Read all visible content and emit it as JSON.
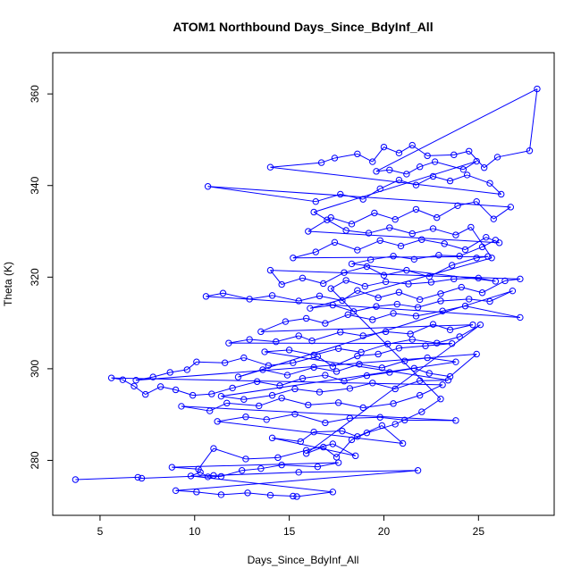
{
  "chart_data": {
    "type": "scatter",
    "title": "ATOM1 Northbound Days_Since_BdyInf_All",
    "xlabel": "Days_Since_BdyInf_All",
    "ylabel": "Theta (K)",
    "xlim": [
      2.5,
      29.0
    ],
    "ylim": [
      268.0,
      369.0
    ],
    "x_ticks": [
      5,
      10,
      15,
      20,
      25
    ],
    "y_ticks": [
      280,
      300,
      320,
      340,
      360
    ],
    "series_color": "#0000ff",
    "grid": false,
    "markers": "open-circle",
    "connected_by_lines": true,
    "points": [
      [
        3.7,
        275.8
      ],
      [
        7.0,
        276.3
      ],
      [
        7.2,
        276.1
      ],
      [
        11.0,
        276.7
      ],
      [
        15.5,
        277.4
      ],
      [
        21.8,
        277.8
      ],
      [
        9.0,
        273.4
      ],
      [
        10.1,
        273.1
      ],
      [
        11.4,
        272.5
      ],
      [
        12.8,
        272.9
      ],
      [
        14.0,
        272.4
      ],
      [
        15.2,
        272.2
      ],
      [
        15.4,
        272.1
      ],
      [
        17.3,
        273.1
      ],
      [
        9.8,
        276.6
      ],
      [
        10.3,
        277.4
      ],
      [
        10.7,
        276.4
      ],
      [
        11.4,
        276.5
      ],
      [
        12.5,
        277.8
      ],
      [
        13.5,
        278.2
      ],
      [
        14.6,
        279.0
      ],
      [
        16.5,
        278.6
      ],
      [
        17.6,
        279.5
      ],
      [
        8.8,
        278.5
      ],
      [
        10.2,
        278.1
      ],
      [
        11.0,
        282.6
      ],
      [
        12.7,
        280.3
      ],
      [
        14.4,
        280.6
      ],
      [
        15.9,
        282.2
      ],
      [
        17.3,
        283.6
      ],
      [
        18.5,
        281.0
      ],
      [
        14.1,
        284.9
      ],
      [
        15.6,
        284.1
      ],
      [
        16.3,
        286.2
      ],
      [
        17.8,
        286.4
      ],
      [
        18.6,
        285.2
      ],
      [
        19.9,
        287.6
      ],
      [
        21.0,
        283.7
      ],
      [
        11.2,
        288.5
      ],
      [
        12.7,
        289.5
      ],
      [
        13.8,
        288.9
      ],
      [
        15.3,
        290.1
      ],
      [
        16.9,
        288.2
      ],
      [
        18.2,
        289.2
      ],
      [
        19.8,
        289.4
      ],
      [
        21.1,
        288.8
      ],
      [
        23.8,
        288.7
      ],
      [
        9.3,
        291.8
      ],
      [
        10.8,
        290.8
      ],
      [
        11.7,
        292.5
      ],
      [
        13.4,
        291.9
      ],
      [
        14.6,
        293.6
      ],
      [
        16.0,
        292.1
      ],
      [
        17.6,
        292.6
      ],
      [
        18.9,
        291.5
      ],
      [
        20.5,
        292.4
      ],
      [
        21.9,
        294.2
      ],
      [
        23.1,
        296.5
      ],
      [
        5.6,
        298.0
      ],
      [
        6.2,
        297.6
      ],
      [
        6.8,
        296.2
      ],
      [
        7.4,
        294.4
      ],
      [
        8.2,
        296.1
      ],
      [
        9.0,
        295.4
      ],
      [
        9.9,
        294.2
      ],
      [
        10.9,
        294.5
      ],
      [
        12.0,
        295.8
      ],
      [
        13.3,
        297.2
      ],
      [
        14.5,
        296.3
      ],
      [
        15.7,
        297.9
      ],
      [
        16.9,
        298.6
      ],
      [
        17.9,
        297.3
      ],
      [
        19.1,
        298.5
      ],
      [
        20.3,
        299.2
      ],
      [
        21.6,
        300.1
      ],
      [
        22.4,
        299.0
      ],
      [
        23.5,
        298.3
      ],
      [
        24.9,
        303.2
      ],
      [
        6.9,
        297.5
      ],
      [
        7.8,
        298.2
      ],
      [
        8.7,
        299.2
      ],
      [
        9.6,
        299.8
      ],
      [
        10.1,
        301.5
      ],
      [
        11.6,
        301.3
      ],
      [
        12.6,
        302.4
      ],
      [
        13.9,
        300.7
      ],
      [
        15.2,
        301.3
      ],
      [
        16.5,
        302.7
      ],
      [
        17.3,
        300.5
      ],
      [
        18.6,
        302.8
      ],
      [
        19.7,
        303.2
      ],
      [
        20.8,
        304.5
      ],
      [
        22.2,
        305.0
      ],
      [
        23.6,
        305.5
      ],
      [
        11.8,
        305.6
      ],
      [
        12.9,
        306.4
      ],
      [
        14.3,
        305.9
      ],
      [
        15.5,
        307.2
      ],
      [
        16.2,
        306.1
      ],
      [
        17.7,
        308.0
      ],
      [
        18.9,
        307.2
      ],
      [
        20.1,
        308.1
      ],
      [
        21.4,
        307.6
      ],
      [
        22.6,
        309.7
      ],
      [
        23.5,
        308.5
      ],
      [
        24.7,
        309.6
      ],
      [
        13.5,
        308.1
      ],
      [
        14.8,
        310.3
      ],
      [
        15.9,
        311.0
      ],
      [
        16.9,
        309.9
      ],
      [
        18.1,
        311.8
      ],
      [
        19.4,
        310.7
      ],
      [
        20.5,
        312.1
      ],
      [
        21.7,
        311.5
      ],
      [
        23.1,
        312.6
      ],
      [
        24.3,
        313.7
      ],
      [
        27.2,
        311.2
      ],
      [
        10.6,
        315.8
      ],
      [
        11.5,
        316.5
      ],
      [
        12.9,
        315.2
      ],
      [
        14.1,
        316.0
      ],
      [
        15.5,
        314.8
      ],
      [
        16.6,
        315.9
      ],
      [
        17.8,
        314.9
      ],
      [
        18.6,
        317.1
      ],
      [
        19.7,
        315.5
      ],
      [
        20.8,
        316.7
      ],
      [
        21.9,
        315.1
      ],
      [
        23.0,
        316.4
      ],
      [
        24.1,
        317.8
      ],
      [
        25.2,
        316.6
      ],
      [
        26.4,
        319.2
      ],
      [
        27.2,
        319.6
      ],
      [
        14.0,
        321.5
      ],
      [
        14.6,
        318.4
      ],
      [
        15.7,
        319.8
      ],
      [
        16.8,
        318.6
      ],
      [
        17.9,
        321.0
      ],
      [
        19.1,
        322.3
      ],
      [
        20.0,
        320.4
      ],
      [
        21.2,
        321.5
      ],
      [
        22.4,
        320.1
      ],
      [
        23.6,
        322.6
      ],
      [
        24.9,
        324.2
      ],
      [
        25.5,
        324.5
      ],
      [
        15.2,
        324.2
      ],
      [
        16.4,
        325.5
      ],
      [
        17.4,
        327.6
      ],
      [
        18.6,
        325.9
      ],
      [
        19.8,
        328.0
      ],
      [
        20.9,
        326.8
      ],
      [
        22.0,
        328.2
      ],
      [
        23.2,
        327.3
      ],
      [
        24.3,
        326.0
      ],
      [
        25.4,
        328.7
      ],
      [
        26.1,
        327.5
      ],
      [
        16.0,
        330.0
      ],
      [
        17.2,
        333.0
      ],
      [
        18.3,
        331.6
      ],
      [
        19.5,
        334.0
      ],
      [
        20.6,
        332.6
      ],
      [
        21.7,
        334.8
      ],
      [
        22.8,
        333.0
      ],
      [
        23.9,
        335.6
      ],
      [
        24.9,
        336.5
      ],
      [
        25.8,
        332.7
      ],
      [
        26.7,
        335.3
      ],
      [
        10.7,
        339.8
      ],
      [
        16.4,
        336.5
      ],
      [
        17.7,
        338.1
      ],
      [
        18.9,
        337.0
      ],
      [
        19.8,
        339.3
      ],
      [
        20.8,
        341.2
      ],
      [
        21.7,
        340.1
      ],
      [
        22.6,
        342.0
      ],
      [
        23.5,
        341.0
      ],
      [
        24.4,
        342.3
      ],
      [
        25.6,
        340.5
      ],
      [
        26.2,
        338.1
      ],
      [
        14.0,
        344.0
      ],
      [
        16.7,
        345.0
      ],
      [
        17.4,
        346.0
      ],
      [
        18.6,
        346.9
      ],
      [
        19.4,
        345.2
      ],
      [
        20.0,
        348.4
      ],
      [
        20.8,
        347.1
      ],
      [
        21.5,
        348.8
      ],
      [
        22.3,
        346.5
      ],
      [
        23.7,
        346.7
      ],
      [
        24.5,
        347.5
      ],
      [
        25.3,
        343.9
      ],
      [
        26.0,
        346.2
      ],
      [
        27.7,
        347.6
      ],
      [
        28.1,
        361.1
      ],
      [
        19.6,
        343.1
      ],
      [
        20.3,
        343.4
      ],
      [
        21.2,
        342.5
      ],
      [
        21.9,
        344.1
      ],
      [
        22.7,
        345.2
      ],
      [
        24.2,
        343.5
      ],
      [
        24.9,
        345.3
      ],
      [
        16.3,
        334.2
      ],
      [
        17.0,
        332.5
      ],
      [
        18.0,
        330.2
      ],
      [
        19.2,
        329.6
      ],
      [
        20.3,
        330.8
      ],
      [
        21.5,
        329.5
      ],
      [
        22.6,
        330.6
      ],
      [
        23.8,
        329.2
      ],
      [
        24.6,
        330.9
      ],
      [
        25.7,
        324.2
      ],
      [
        16.1,
        313.2
      ],
      [
        17.3,
        313.9
      ],
      [
        18.4,
        312.5
      ],
      [
        19.6,
        313.6
      ],
      [
        20.7,
        314.1
      ],
      [
        21.8,
        313.4
      ],
      [
        23.0,
        314.8
      ],
      [
        24.5,
        315.2
      ],
      [
        25.6,
        314.7
      ],
      [
        26.8,
        317.0
      ],
      [
        12.3,
        298.2
      ],
      [
        13.6,
        299.8
      ],
      [
        14.9,
        298.6
      ],
      [
        16.3,
        300.3
      ],
      [
        17.5,
        299.4
      ],
      [
        18.7,
        301.0
      ],
      [
        19.9,
        300.2
      ],
      [
        21.1,
        301.7
      ],
      [
        22.3,
        302.4
      ],
      [
        23.8,
        301.5
      ],
      [
        11.4,
        294.0
      ],
      [
        12.6,
        293.3
      ],
      [
        14.1,
        294.2
      ],
      [
        15.3,
        295.6
      ],
      [
        16.6,
        294.9
      ],
      [
        18.2,
        295.7
      ],
      [
        19.4,
        296.9
      ],
      [
        20.6,
        295.6
      ],
      [
        21.9,
        297.4
      ],
      [
        23.4,
        297.5
      ],
      [
        13.7,
        303.7
      ],
      [
        15.0,
        304.1
      ],
      [
        16.3,
        303.0
      ],
      [
        17.6,
        304.4
      ],
      [
        18.8,
        303.6
      ],
      [
        20.2,
        305.4
      ],
      [
        21.5,
        306.4
      ],
      [
        22.8,
        305.6
      ],
      [
        24.0,
        307.0
      ],
      [
        25.1,
        309.6
      ],
      [
        15.9,
        281.5
      ],
      [
        16.8,
        282.9
      ],
      [
        17.5,
        280.7
      ],
      [
        18.3,
        284.5
      ],
      [
        19.1,
        286.0
      ],
      [
        20.6,
        287.9
      ],
      [
        22.0,
        290.6
      ],
      [
        23.0,
        293.4
      ],
      [
        17.2,
        317.5
      ],
      [
        18.0,
        319.3
      ],
      [
        19.0,
        318.0
      ],
      [
        20.1,
        319.0
      ],
      [
        21.3,
        318.5
      ],
      [
        22.5,
        318.9
      ],
      [
        23.7,
        319.6
      ],
      [
        25.0,
        319.8
      ],
      [
        25.9,
        319.1
      ],
      [
        18.3,
        322.9
      ],
      [
        19.3,
        323.8
      ],
      [
        20.5,
        324.6
      ],
      [
        21.6,
        323.9
      ],
      [
        22.9,
        324.8
      ],
      [
        24.0,
        324.6
      ],
      [
        25.2,
        326.6
      ],
      [
        25.9,
        328.1
      ]
    ]
  }
}
